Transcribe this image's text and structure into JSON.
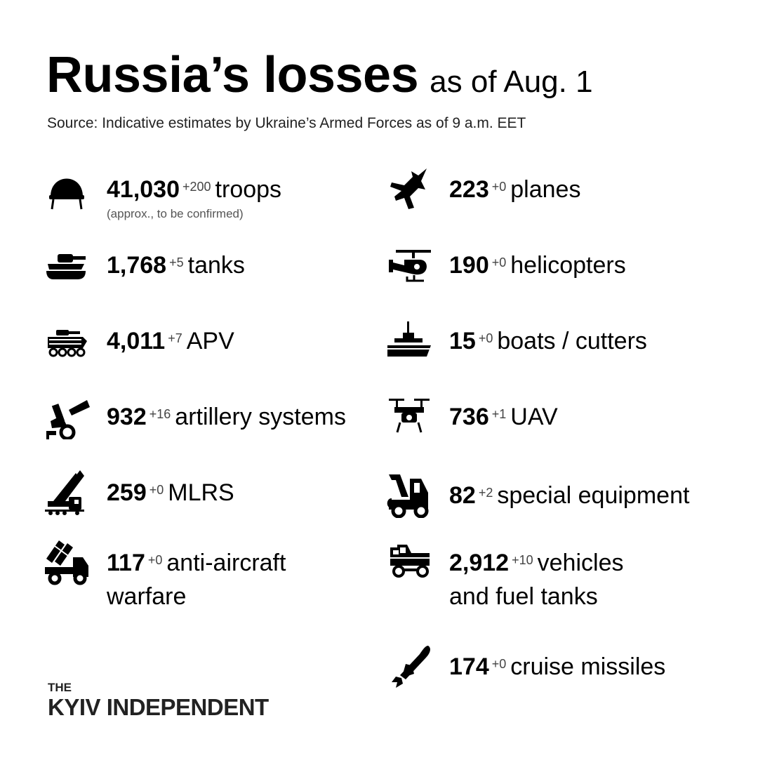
{
  "header": {
    "title": "Russia’s losses",
    "subtitle": "as of Aug. 1",
    "source": "Source: Indicative estimates by Ukraine’s Armed Forces as of 9 a.m. EET"
  },
  "items": [
    {
      "icon": "helmet-icon",
      "value": "41,030",
      "delta": "+200",
      "label": "troops",
      "note": "(approx., to be confirmed)"
    },
    {
      "icon": "plane-icon",
      "value": "223",
      "delta": "+0",
      "label": "planes"
    },
    {
      "icon": "tank-icon",
      "value": "1,768",
      "delta": "+5",
      "label": "tanks"
    },
    {
      "icon": "helicopter-icon",
      "value": "190",
      "delta": "+0",
      "label": "helicopters"
    },
    {
      "icon": "apv-icon",
      "value": "4,011",
      "delta": "+7",
      "label": "APV"
    },
    {
      "icon": "boat-icon",
      "value": "15",
      "delta": "+0",
      "label": "boats / cutters"
    },
    {
      "icon": "artillery-icon",
      "value": "932",
      "delta": "+16",
      "label": "artillery systems"
    },
    {
      "icon": "drone-icon",
      "value": "736",
      "delta": "+1",
      "label": "UAV"
    },
    {
      "icon": "mlrs-icon",
      "value": "259",
      "delta": "+0",
      "label": "MLRS"
    },
    {
      "icon": "crane-truck-icon",
      "value": "82",
      "delta": "+2",
      "label": "special equipment"
    },
    {
      "icon": "anti-aircraft-icon",
      "value": "117",
      "delta": "+0",
      "label": "anti-aircraft",
      "label2": "warfare"
    },
    {
      "icon": "jeep-icon",
      "value": "2,912",
      "delta": "+10",
      "label": "vehicles",
      "label2": "and fuel tanks"
    },
    {
      "icon": "missile-icon",
      "value": "174",
      "delta": "+0",
      "label": "cruise missiles"
    }
  ],
  "logo": {
    "line1": "THE",
    "line2": "KYIV INDEPENDENT"
  }
}
